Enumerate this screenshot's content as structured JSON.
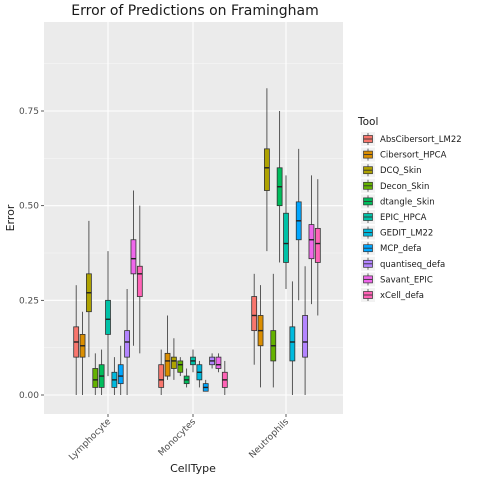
{
  "chart_data": {
    "type": "boxplot",
    "title": "Error of Predictions on Framingham",
    "xlabel": "CellType",
    "ylabel": "Error",
    "ylim": [
      -0.05,
      1.0
    ],
    "yticks": [
      0.0,
      0.25,
      0.5,
      0.75
    ],
    "ytick_labels": [
      "0.00",
      "0.25",
      "0.50",
      "0.75"
    ],
    "categories": [
      "Lymphocyte",
      "Monocytes",
      "Neutrophils"
    ],
    "grid": true,
    "legend_position": "right",
    "legend_title": "Tool",
    "series": [
      {
        "name": "AbsCibersort_LM22",
        "color": "#F8766D",
        "boxes": [
          {
            "whisker_low": 0.0,
            "q1": 0.1,
            "median": 0.14,
            "q3": 0.18,
            "whisker_high": 0.29
          },
          {
            "whisker_low": 0.0,
            "q1": 0.02,
            "median": 0.04,
            "q3": 0.08,
            "whisker_high": 0.12
          },
          {
            "whisker_low": 0.08,
            "q1": 0.17,
            "median": 0.21,
            "q3": 0.26,
            "whisker_high": 0.32
          }
        ]
      },
      {
        "name": "Cibersort_HPCA",
        "color": "#DB8E00",
        "boxes": [
          {
            "whisker_low": 0.0,
            "q1": 0.1,
            "median": 0.13,
            "q3": 0.16,
            "whisker_high": 0.22
          },
          {
            "whisker_low": 0.04,
            "q1": 0.05,
            "median": 0.09,
            "q3": 0.11,
            "whisker_high": 0.21
          },
          {
            "whisker_low": 0.02,
            "q1": 0.13,
            "median": 0.17,
            "q3": 0.21,
            "whisker_high": 0.29
          }
        ]
      },
      {
        "name": "DCQ_Skin",
        "color": "#AEA200",
        "boxes": [
          {
            "whisker_low": 0.1,
            "q1": 0.22,
            "median": 0.27,
            "q3": 0.32,
            "whisker_high": 0.46
          },
          {
            "whisker_low": 0.04,
            "q1": 0.07,
            "median": 0.09,
            "q3": 0.1,
            "whisker_high": 0.15
          },
          {
            "whisker_low": 0.38,
            "q1": 0.54,
            "median": 0.6,
            "q3": 0.65,
            "whisker_high": 0.81
          }
        ]
      },
      {
        "name": "Decon_Skin",
        "color": "#64B200",
        "boxes": [
          {
            "whisker_low": 0.0,
            "q1": 0.02,
            "median": 0.04,
            "q3": 0.07,
            "whisker_high": 0.11
          },
          {
            "whisker_low": 0.05,
            "q1": 0.06,
            "median": 0.08,
            "q3": 0.09,
            "whisker_high": 0.1
          },
          {
            "whisker_low": 0.02,
            "q1": 0.09,
            "median": 0.13,
            "q3": 0.17,
            "whisker_high": 0.32
          }
        ]
      },
      {
        "name": "dtangle_Skin",
        "color": "#00BD5C",
        "boxes": [
          {
            "whisker_low": 0.0,
            "q1": 0.02,
            "median": 0.05,
            "q3": 0.08,
            "whisker_high": 0.12
          },
          {
            "whisker_low": 0.02,
            "q1": 0.03,
            "median": 0.04,
            "q3": 0.05,
            "whisker_high": 0.07
          },
          {
            "whisker_low": 0.35,
            "q1": 0.5,
            "median": 0.55,
            "q3": 0.6,
            "whisker_high": 0.75
          }
        ]
      },
      {
        "name": "EPIC_HPCA",
        "color": "#00C1A7",
        "boxes": [
          {
            "whisker_low": 0.05,
            "q1": 0.16,
            "median": 0.2,
            "q3": 0.25,
            "whisker_high": 0.38
          },
          {
            "whisker_low": 0.06,
            "q1": 0.08,
            "median": 0.09,
            "q3": 0.1,
            "whisker_high": 0.12
          },
          {
            "whisker_low": 0.28,
            "q1": 0.35,
            "median": 0.4,
            "q3": 0.48,
            "whisker_high": 0.58
          }
        ]
      },
      {
        "name": "GEDIT_LM22",
        "color": "#00BADE",
        "boxes": [
          {
            "whisker_low": 0.0,
            "q1": 0.02,
            "median": 0.04,
            "q3": 0.06,
            "whisker_high": 0.1
          },
          {
            "whisker_low": 0.02,
            "q1": 0.04,
            "median": 0.06,
            "q3": 0.08,
            "whisker_high": 0.09
          },
          {
            "whisker_low": 0.0,
            "q1": 0.09,
            "median": 0.14,
            "q3": 0.18,
            "whisker_high": 0.3
          }
        ]
      },
      {
        "name": "MCP_defa",
        "color": "#00A6FF",
        "boxes": [
          {
            "whisker_low": 0.0,
            "q1": 0.03,
            "median": 0.05,
            "q3": 0.08,
            "whisker_high": 0.13
          },
          {
            "whisker_low": 0.01,
            "q1": 0.01,
            "median": 0.02,
            "q3": 0.03,
            "whisker_high": 0.04
          },
          {
            "whisker_low": 0.25,
            "q1": 0.41,
            "median": 0.46,
            "q3": 0.51,
            "whisker_high": 0.65
          }
        ]
      },
      {
        "name": "quantiseq_defa",
        "color": "#B385FF",
        "boxes": [
          {
            "whisker_low": 0.0,
            "q1": 0.1,
            "median": 0.14,
            "q3": 0.17,
            "whisker_high": 0.28
          },
          {
            "whisker_low": 0.07,
            "q1": 0.08,
            "median": 0.09,
            "q3": 0.1,
            "whisker_high": 0.11
          },
          {
            "whisker_low": 0.0,
            "q1": 0.1,
            "median": 0.14,
            "q3": 0.21,
            "whisker_high": 0.34
          }
        ]
      },
      {
        "name": "Savant_EPIC",
        "color": "#EF67EB",
        "boxes": [
          {
            "whisker_low": 0.13,
            "q1": 0.32,
            "median": 0.36,
            "q3": 0.41,
            "whisker_high": 0.54
          },
          {
            "whisker_low": 0.06,
            "q1": 0.07,
            "median": 0.08,
            "q3": 0.1,
            "whisker_high": 0.11
          },
          {
            "whisker_low": 0.24,
            "q1": 0.36,
            "median": 0.41,
            "q3": 0.45,
            "whisker_high": 0.58
          }
        ]
      },
      {
        "name": "xCell_defa",
        "color": "#FF63B6",
        "boxes": [
          {
            "whisker_low": 0.11,
            "q1": 0.26,
            "median": 0.32,
            "q3": 0.34,
            "whisker_high": 0.5
          },
          {
            "whisker_low": 0.0,
            "q1": 0.02,
            "median": 0.04,
            "q3": 0.06,
            "whisker_high": 0.09
          },
          {
            "whisker_low": 0.21,
            "q1": 0.35,
            "median": 0.4,
            "q3": 0.44,
            "whisker_high": 0.57
          }
        ]
      }
    ]
  }
}
